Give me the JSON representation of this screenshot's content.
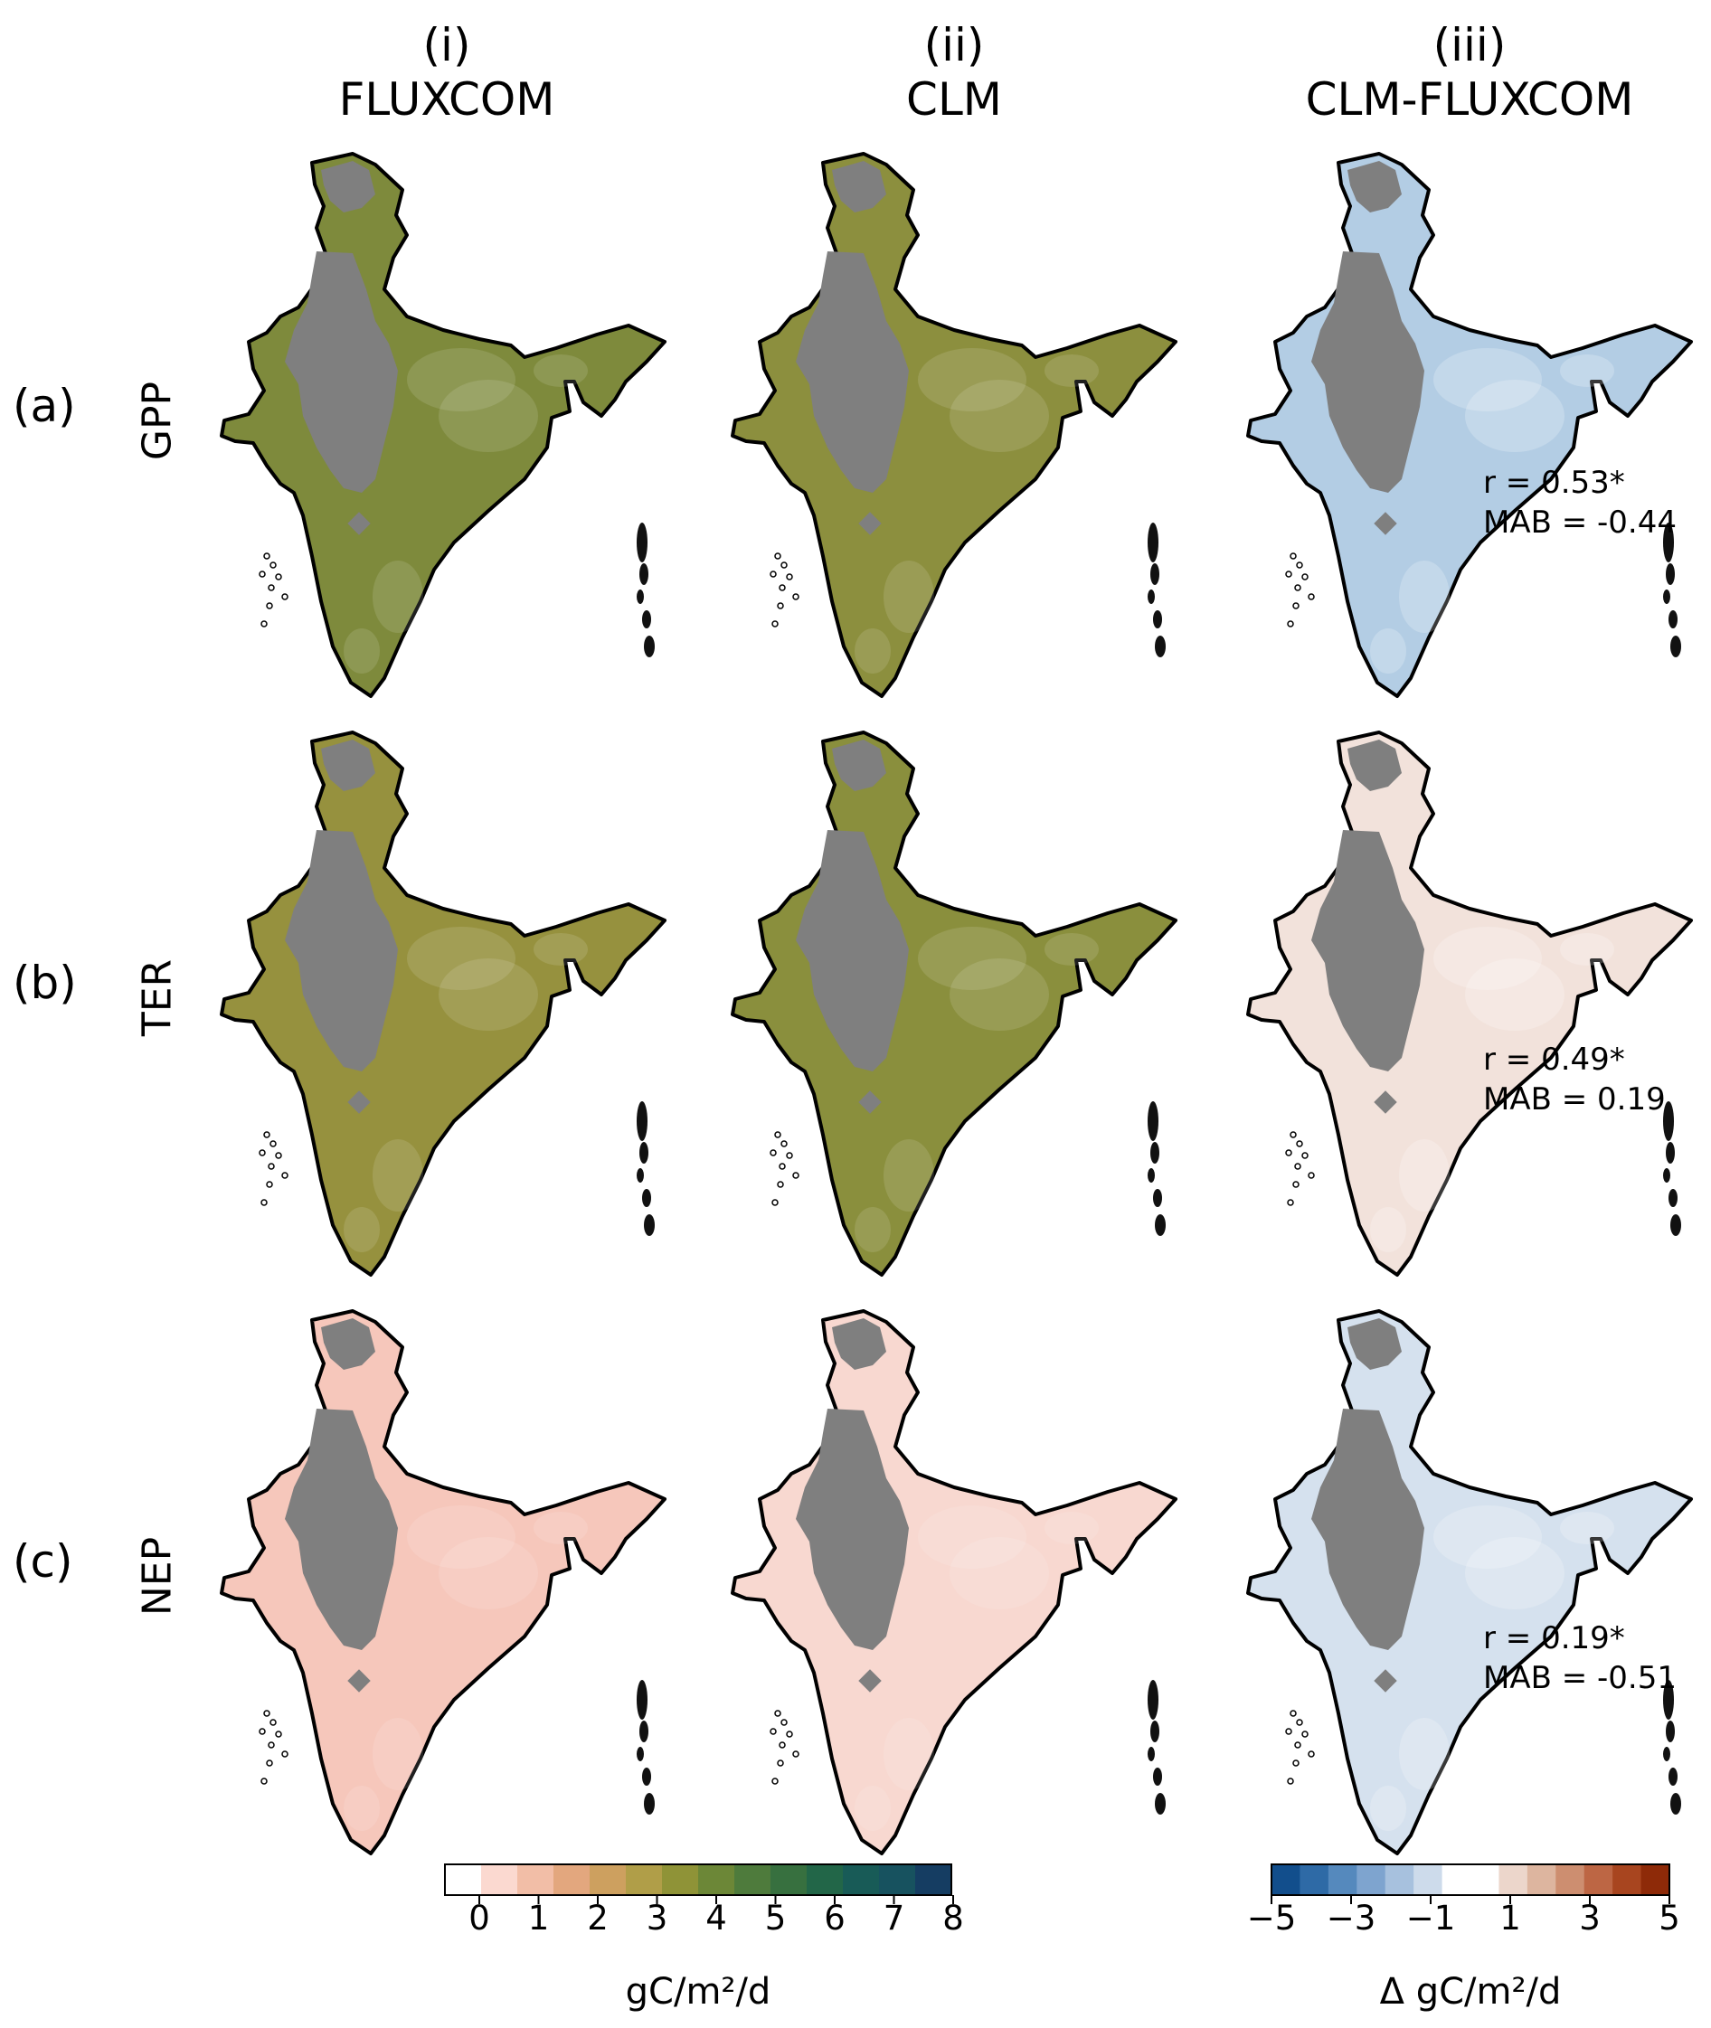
{
  "columns": [
    {
      "num": "(i)",
      "name": "FLUXCOM"
    },
    {
      "num": "(ii)",
      "name": "CLM"
    },
    {
      "num": "(iii)",
      "name": "CLM-FLUXCOM"
    }
  ],
  "rows": [
    {
      "letter": "(a)",
      "variable": "GPP",
      "r": "r = 0.53*",
      "mab": "MAB = -0.44"
    },
    {
      "letter": "(b)",
      "variable": "TER",
      "r": "r = 0.49*",
      "mab": "MAB = 0.19"
    },
    {
      "letter": "(c)",
      "variable": "NEP",
      "r": "r = 0.19*",
      "mab": "MAB = -0.51"
    }
  ],
  "colorbars": {
    "absolute": {
      "label": "gC/m²/d",
      "ticks": [
        "0",
        "1",
        "2",
        "3",
        "4",
        "5",
        "6",
        "7",
        "8"
      ],
      "colors": [
        "#ffffff",
        "#fbd9d0",
        "#f2bea7",
        "#e3a77e",
        "#cda05f",
        "#b09e48",
        "#8f9337",
        "#6c8737",
        "#4e7b3c",
        "#37703f",
        "#226648",
        "#185b57",
        "#17525f",
        "#153d62"
      ]
    },
    "difference": {
      "label": "Δ gC/m²/d",
      "ticks": [
        "−5",
        "−3",
        "−1",
        "1",
        "3",
        "5"
      ],
      "colors": [
        "#124e8c",
        "#2e6aa6",
        "#5589bd",
        "#7ea4cf",
        "#a7c1de",
        "#cddbeb",
        "#ffffff",
        "#ffffff",
        "#ecd6cb",
        "#ddb59f",
        "#cd8e70",
        "#bd6644",
        "#a8451f",
        "#8e2a08"
      ]
    }
  },
  "legend_colors": {
    "mask": "#7f7f7f",
    "outline": "#000000"
  },
  "panel_fills": [
    [
      "#7e8a3c",
      "#8c8f3e",
      "#b3cde4"
    ],
    [
      "#96913e",
      "#8a8f3d",
      "#f2e2db"
    ],
    [
      "#f6c7bb",
      "#f8d8d0",
      "#d5e1ee"
    ]
  ]
}
